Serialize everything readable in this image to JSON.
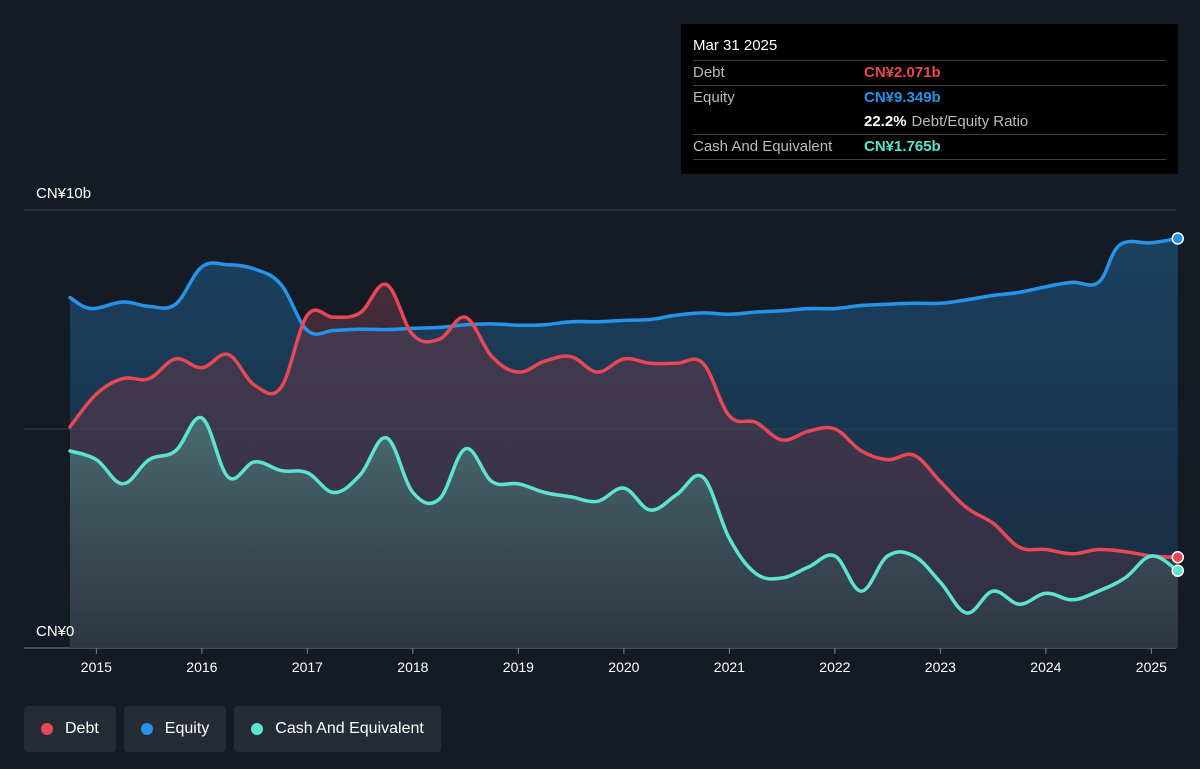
{
  "tooltip": {
    "date": "Mar 31 2025",
    "rows": [
      {
        "label": "Debt",
        "value": "CN¥2.071b",
        "color": "#e84855"
      },
      {
        "label": "Equity",
        "value": "CN¥9.349b",
        "color": "#2394e8"
      },
      {
        "ratio_value": "22.2%",
        "ratio_label": "Debt/Equity Ratio"
      },
      {
        "label": "Cash And Equivalent",
        "value": "CN¥1.765b",
        "color": "#5ce4d0"
      }
    ]
  },
  "legend": [
    {
      "label": "Debt",
      "color": "#e84855"
    },
    {
      "label": "Equity",
      "color": "#2394e8"
    },
    {
      "label": "Cash And Equivalent",
      "color": "#5ce4d0"
    }
  ],
  "chart_data": {
    "type": "area",
    "y_top_label": "CN¥10b",
    "y_bottom_label": "CN¥0",
    "ylim": [
      0,
      10
    ],
    "xlim": [
      2014.75,
      2025.25
    ],
    "x_ticks": [
      "2015",
      "2016",
      "2017",
      "2018",
      "2019",
      "2020",
      "2021",
      "2022",
      "2023",
      "2024",
      "2025"
    ],
    "grid": true,
    "series": [
      {
        "name": "Equity",
        "color": "#2394e8",
        "points": [
          [
            2014.75,
            8.0
          ],
          [
            2014.95,
            7.75
          ],
          [
            2015.25,
            7.9
          ],
          [
            2015.5,
            7.8
          ],
          [
            2015.75,
            7.85
          ],
          [
            2016.0,
            8.7
          ],
          [
            2016.25,
            8.75
          ],
          [
            2016.5,
            8.65
          ],
          [
            2016.75,
            8.3
          ],
          [
            2017.0,
            7.25
          ],
          [
            2017.25,
            7.25
          ],
          [
            2017.5,
            7.28
          ],
          [
            2017.75,
            7.27
          ],
          [
            2018.0,
            7.3
          ],
          [
            2018.25,
            7.32
          ],
          [
            2018.5,
            7.38
          ],
          [
            2018.75,
            7.4
          ],
          [
            2019.0,
            7.37
          ],
          [
            2019.25,
            7.38
          ],
          [
            2019.5,
            7.45
          ],
          [
            2019.75,
            7.45
          ],
          [
            2020.0,
            7.48
          ],
          [
            2020.25,
            7.5
          ],
          [
            2020.5,
            7.6
          ],
          [
            2020.75,
            7.65
          ],
          [
            2021.0,
            7.62
          ],
          [
            2021.25,
            7.67
          ],
          [
            2021.5,
            7.7
          ],
          [
            2021.75,
            7.75
          ],
          [
            2022.0,
            7.75
          ],
          [
            2022.25,
            7.82
          ],
          [
            2022.5,
            7.85
          ],
          [
            2022.75,
            7.87
          ],
          [
            2023.0,
            7.87
          ],
          [
            2023.25,
            7.95
          ],
          [
            2023.5,
            8.05
          ],
          [
            2023.75,
            8.12
          ],
          [
            2024.0,
            8.25
          ],
          [
            2024.25,
            8.35
          ],
          [
            2024.5,
            8.35
          ],
          [
            2024.7,
            9.2
          ],
          [
            2025.0,
            9.25
          ],
          [
            2025.25,
            9.349
          ]
        ]
      },
      {
        "name": "Debt",
        "color": "#e84855",
        "points": [
          [
            2014.75,
            5.05
          ],
          [
            2015.0,
            5.8
          ],
          [
            2015.25,
            6.15
          ],
          [
            2015.5,
            6.15
          ],
          [
            2015.75,
            6.6
          ],
          [
            2016.0,
            6.4
          ],
          [
            2016.25,
            6.7
          ],
          [
            2016.5,
            6.0
          ],
          [
            2016.75,
            5.95
          ],
          [
            2017.0,
            7.6
          ],
          [
            2017.25,
            7.55
          ],
          [
            2017.5,
            7.65
          ],
          [
            2017.75,
            8.3
          ],
          [
            2018.0,
            7.15
          ],
          [
            2018.25,
            7.05
          ],
          [
            2018.5,
            7.55
          ],
          [
            2018.75,
            6.65
          ],
          [
            2019.0,
            6.3
          ],
          [
            2019.25,
            6.55
          ],
          [
            2019.5,
            6.65
          ],
          [
            2019.75,
            6.3
          ],
          [
            2020.0,
            6.6
          ],
          [
            2020.25,
            6.5
          ],
          [
            2020.5,
            6.5
          ],
          [
            2020.75,
            6.5
          ],
          [
            2021.0,
            5.3
          ],
          [
            2021.25,
            5.15
          ],
          [
            2021.5,
            4.75
          ],
          [
            2021.75,
            4.95
          ],
          [
            2022.0,
            5.0
          ],
          [
            2022.25,
            4.5
          ],
          [
            2022.5,
            4.3
          ],
          [
            2022.75,
            4.4
          ],
          [
            2023.0,
            3.8
          ],
          [
            2023.25,
            3.2
          ],
          [
            2023.5,
            2.85
          ],
          [
            2023.75,
            2.3
          ],
          [
            2024.0,
            2.25
          ],
          [
            2024.25,
            2.15
          ],
          [
            2024.5,
            2.25
          ],
          [
            2024.75,
            2.2
          ],
          [
            2025.0,
            2.1
          ],
          [
            2025.25,
            2.071
          ]
        ]
      },
      {
        "name": "Cash And Equivalent",
        "color": "#5ce4d0",
        "points": [
          [
            2014.75,
            4.5
          ],
          [
            2015.0,
            4.3
          ],
          [
            2015.25,
            3.75
          ],
          [
            2015.5,
            4.3
          ],
          [
            2015.75,
            4.5
          ],
          [
            2016.0,
            5.25
          ],
          [
            2016.25,
            3.9
          ],
          [
            2016.5,
            4.25
          ],
          [
            2016.75,
            4.05
          ],
          [
            2017.0,
            4.0
          ],
          [
            2017.25,
            3.55
          ],
          [
            2017.5,
            3.95
          ],
          [
            2017.75,
            4.8
          ],
          [
            2018.0,
            3.55
          ],
          [
            2018.25,
            3.4
          ],
          [
            2018.5,
            4.55
          ],
          [
            2018.75,
            3.8
          ],
          [
            2019.0,
            3.75
          ],
          [
            2019.25,
            3.55
          ],
          [
            2019.5,
            3.45
          ],
          [
            2019.75,
            3.35
          ],
          [
            2020.0,
            3.65
          ],
          [
            2020.25,
            3.15
          ],
          [
            2020.5,
            3.5
          ],
          [
            2020.75,
            3.9
          ],
          [
            2021.0,
            2.5
          ],
          [
            2021.25,
            1.7
          ],
          [
            2021.5,
            1.6
          ],
          [
            2021.75,
            1.85
          ],
          [
            2022.0,
            2.1
          ],
          [
            2022.25,
            1.3
          ],
          [
            2022.5,
            2.1
          ],
          [
            2022.75,
            2.1
          ],
          [
            2023.0,
            1.5
          ],
          [
            2023.25,
            0.8
          ],
          [
            2023.5,
            1.3
          ],
          [
            2023.75,
            1.0
          ],
          [
            2024.0,
            1.25
          ],
          [
            2024.25,
            1.1
          ],
          [
            2024.5,
            1.3
          ],
          [
            2024.75,
            1.6
          ],
          [
            2025.0,
            2.1
          ],
          [
            2025.25,
            1.765
          ]
        ]
      }
    ]
  }
}
